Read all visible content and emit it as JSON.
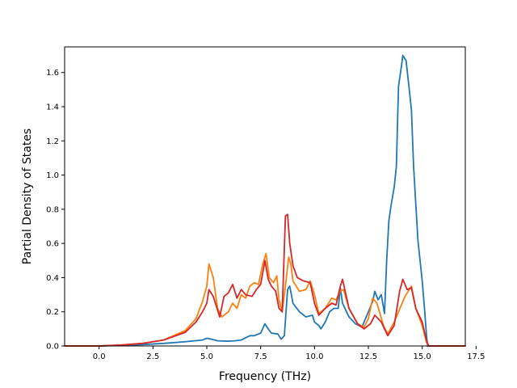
{
  "chart_data": {
    "type": "line",
    "title": "",
    "xlabel": "Frequency (THz)",
    "ylabel": "Partial Density of States",
    "xlim": [
      -1.6,
      17.0
    ],
    "ylim": [
      0,
      1.75
    ],
    "x_ticks": [
      "0.0",
      "2.5",
      "5.0",
      "7.5",
      "10.0",
      "12.5",
      "15.0",
      "17.5"
    ],
    "x_tick_values": [
      0,
      2.5,
      5,
      7.5,
      10,
      12.5,
      15,
      17.5
    ],
    "y_ticks": [
      "0.0",
      "0.2",
      "0.4",
      "0.6",
      "0.8",
      "1.0",
      "1.2",
      "1.4",
      "1.6"
    ],
    "y_tick_values": [
      0,
      0.2,
      0.4,
      0.6,
      0.8,
      1.0,
      1.2,
      1.4,
      1.6
    ],
    "grid": false,
    "legend": "none",
    "series": [
      {
        "color": "#1f77b4",
        "points": [
          [
            -1.6,
            0
          ],
          [
            0,
            0
          ],
          [
            1,
            0.003
          ],
          [
            2,
            0.008
          ],
          [
            3,
            0.015
          ],
          [
            4,
            0.025
          ],
          [
            4.8,
            0.035
          ],
          [
            5.0,
            0.045
          ],
          [
            5.2,
            0.04
          ],
          [
            5.5,
            0.03
          ],
          [
            6.0,
            0.028
          ],
          [
            6.3,
            0.03
          ],
          [
            6.6,
            0.035
          ],
          [
            7.0,
            0.06
          ],
          [
            7.2,
            0.06
          ],
          [
            7.5,
            0.075
          ],
          [
            7.7,
            0.13
          ],
          [
            7.85,
            0.1
          ],
          [
            8.0,
            0.075
          ],
          [
            8.3,
            0.07
          ],
          [
            8.45,
            0.04
          ],
          [
            8.6,
            0.06
          ],
          [
            8.75,
            0.33
          ],
          [
            8.85,
            0.35
          ],
          [
            9.0,
            0.25
          ],
          [
            9.3,
            0.2
          ],
          [
            9.6,
            0.17
          ],
          [
            9.9,
            0.18
          ],
          [
            10.0,
            0.14
          ],
          [
            10.2,
            0.12
          ],
          [
            10.3,
            0.1
          ],
          [
            10.5,
            0.14
          ],
          [
            10.7,
            0.2
          ],
          [
            10.9,
            0.22
          ],
          [
            11.1,
            0.22
          ],
          [
            11.2,
            0.34
          ],
          [
            11.3,
            0.25
          ],
          [
            11.6,
            0.17
          ],
          [
            11.9,
            0.13
          ],
          [
            12.2,
            0.11
          ],
          [
            12.5,
            0.2
          ],
          [
            12.7,
            0.26
          ],
          [
            12.8,
            0.32
          ],
          [
            12.95,
            0.27
          ],
          [
            13.1,
            0.3
          ],
          [
            13.25,
            0.19
          ],
          [
            13.35,
            0.5
          ],
          [
            13.45,
            0.73
          ],
          [
            13.55,
            0.82
          ],
          [
            13.7,
            0.93
          ],
          [
            13.8,
            1.05
          ],
          [
            13.9,
            1.52
          ],
          [
            14.05,
            1.65
          ],
          [
            14.1,
            1.7
          ],
          [
            14.25,
            1.67
          ],
          [
            14.4,
            1.5
          ],
          [
            14.5,
            1.38
          ],
          [
            14.6,
            1.05
          ],
          [
            14.8,
            0.62
          ],
          [
            15.0,
            0.38
          ],
          [
            15.1,
            0.23
          ],
          [
            15.2,
            0.06
          ],
          [
            15.25,
            0
          ],
          [
            17.0,
            0
          ]
        ]
      },
      {
        "color": "#ff7f0e",
        "points": [
          [
            -1.6,
            0
          ],
          [
            0,
            0
          ],
          [
            1,
            0.005
          ],
          [
            2,
            0.015
          ],
          [
            3,
            0.035
          ],
          [
            4,
            0.09
          ],
          [
            4.5,
            0.16
          ],
          [
            4.8,
            0.26
          ],
          [
            5.0,
            0.35
          ],
          [
            5.1,
            0.48
          ],
          [
            5.3,
            0.4
          ],
          [
            5.5,
            0.22
          ],
          [
            5.7,
            0.17
          ],
          [
            6.0,
            0.2
          ],
          [
            6.2,
            0.25
          ],
          [
            6.4,
            0.22
          ],
          [
            6.6,
            0.3
          ],
          [
            6.8,
            0.28
          ],
          [
            7.0,
            0.35
          ],
          [
            7.2,
            0.37
          ],
          [
            7.4,
            0.36
          ],
          [
            7.6,
            0.48
          ],
          [
            7.75,
            0.54
          ],
          [
            7.9,
            0.4
          ],
          [
            8.1,
            0.37
          ],
          [
            8.25,
            0.41
          ],
          [
            8.35,
            0.27
          ],
          [
            8.5,
            0.2
          ],
          [
            8.65,
            0.35
          ],
          [
            8.8,
            0.52
          ],
          [
            8.9,
            0.48
          ],
          [
            9.0,
            0.38
          ],
          [
            9.3,
            0.32
          ],
          [
            9.6,
            0.33
          ],
          [
            9.8,
            0.38
          ],
          [
            10.0,
            0.3
          ],
          [
            10.2,
            0.19
          ],
          [
            10.5,
            0.22
          ],
          [
            10.8,
            0.28
          ],
          [
            11.0,
            0.27
          ],
          [
            11.2,
            0.32
          ],
          [
            11.35,
            0.33
          ],
          [
            11.6,
            0.22
          ],
          [
            12.0,
            0.13
          ],
          [
            12.3,
            0.11
          ],
          [
            12.5,
            0.16
          ],
          [
            12.7,
            0.28
          ],
          [
            12.9,
            0.25
          ],
          [
            13.2,
            0.12
          ],
          [
            13.4,
            0.07
          ],
          [
            13.7,
            0.14
          ],
          [
            14.0,
            0.23
          ],
          [
            14.2,
            0.29
          ],
          [
            14.5,
            0.35
          ],
          [
            14.7,
            0.22
          ],
          [
            15.0,
            0.12
          ],
          [
            15.2,
            0.02
          ],
          [
            15.3,
            0
          ],
          [
            17.0,
            0
          ]
        ]
      },
      {
        "color": "#d62728",
        "points": [
          [
            -1.6,
            0
          ],
          [
            0,
            0
          ],
          [
            1,
            0.005
          ],
          [
            2,
            0.015
          ],
          [
            3,
            0.035
          ],
          [
            4,
            0.08
          ],
          [
            4.5,
            0.14
          ],
          [
            4.8,
            0.2
          ],
          [
            5.0,
            0.25
          ],
          [
            5.1,
            0.33
          ],
          [
            5.3,
            0.29
          ],
          [
            5.6,
            0.17
          ],
          [
            5.8,
            0.29
          ],
          [
            6.0,
            0.31
          ],
          [
            6.2,
            0.36
          ],
          [
            6.4,
            0.28
          ],
          [
            6.6,
            0.33
          ],
          [
            6.8,
            0.3
          ],
          [
            7.1,
            0.29
          ],
          [
            7.3,
            0.33
          ],
          [
            7.5,
            0.36
          ],
          [
            7.7,
            0.5
          ],
          [
            7.85,
            0.39
          ],
          [
            8.0,
            0.35
          ],
          [
            8.2,
            0.32
          ],
          [
            8.35,
            0.22
          ],
          [
            8.5,
            0.2
          ],
          [
            8.65,
            0.76
          ],
          [
            8.75,
            0.77
          ],
          [
            8.85,
            0.6
          ],
          [
            9.0,
            0.47
          ],
          [
            9.2,
            0.4
          ],
          [
            9.5,
            0.38
          ],
          [
            9.8,
            0.37
          ],
          [
            10.0,
            0.25
          ],
          [
            10.2,
            0.18
          ],
          [
            10.5,
            0.22
          ],
          [
            10.8,
            0.25
          ],
          [
            11.0,
            0.24
          ],
          [
            11.2,
            0.35
          ],
          [
            11.3,
            0.39
          ],
          [
            11.6,
            0.22
          ],
          [
            12.0,
            0.13
          ],
          [
            12.3,
            0.1
          ],
          [
            12.6,
            0.13
          ],
          [
            12.8,
            0.18
          ],
          [
            13.1,
            0.14
          ],
          [
            13.4,
            0.06
          ],
          [
            13.7,
            0.12
          ],
          [
            13.95,
            0.32
          ],
          [
            14.1,
            0.39
          ],
          [
            14.3,
            0.33
          ],
          [
            14.5,
            0.34
          ],
          [
            14.7,
            0.22
          ],
          [
            15.0,
            0.14
          ],
          [
            15.2,
            0.03
          ],
          [
            15.3,
            0
          ],
          [
            17.0,
            0
          ]
        ]
      }
    ]
  }
}
